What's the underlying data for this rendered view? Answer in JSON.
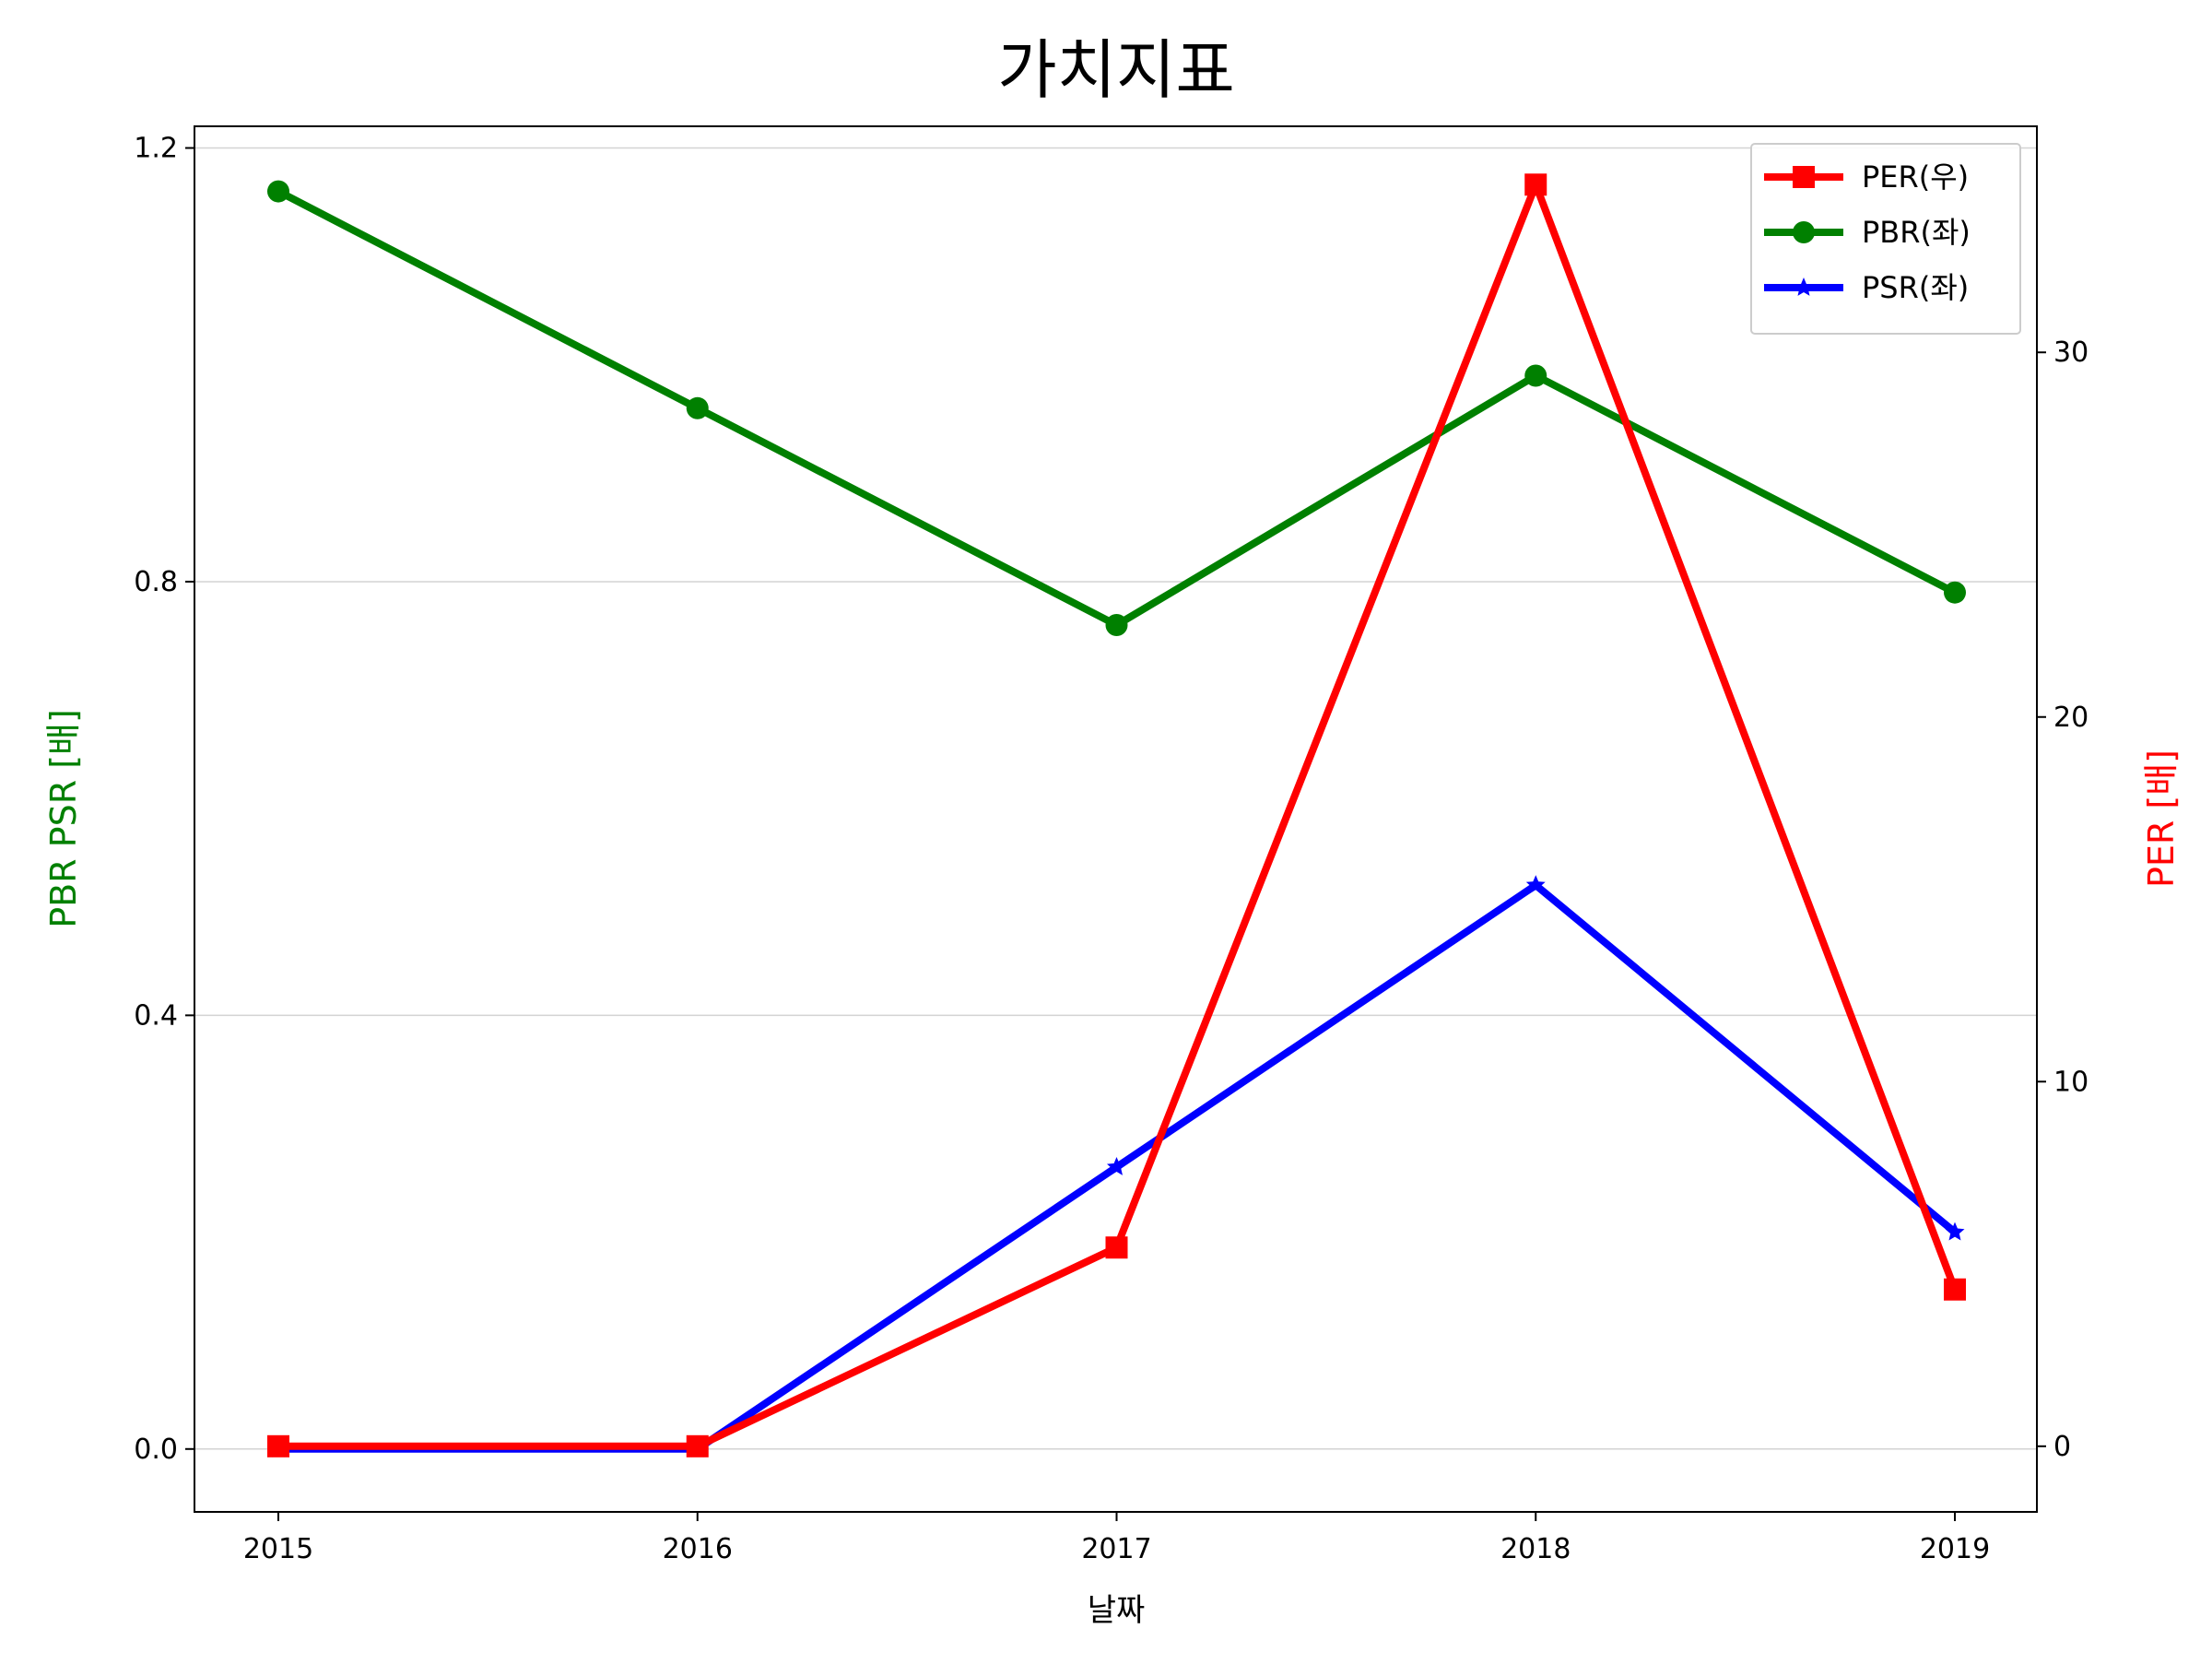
{
  "chart_data": {
    "type": "line",
    "title": "가치지표",
    "xlabel": "날짜",
    "ylabel_left": "PBR PSR [배]",
    "ylabel_right": "PER [배]",
    "x": [
      "2015",
      "2016",
      "2017",
      "2018",
      "2019"
    ],
    "left_axis": {
      "ylim": [
        -0.058,
        1.22
      ],
      "ticks": [
        "0.0",
        "0.4",
        "0.8",
        "1.2"
      ],
      "tick_values": [
        0.0,
        0.4,
        0.8,
        1.2
      ]
    },
    "right_axis": {
      "ylim": [
        -1.8,
        36.2
      ],
      "ticks": [
        "0",
        "10",
        "20",
        "30"
      ],
      "tick_values": [
        0,
        10,
        20,
        30
      ]
    },
    "grid": "horizontal",
    "legend_position": "top-right",
    "series": [
      {
        "name": "PER(우)",
        "axis": "right",
        "color": "#ff0000",
        "marker": "square",
        "values": [
          0.0,
          0.0,
          5.45,
          34.6,
          4.3
        ]
      },
      {
        "name": "PBR(좌)",
        "axis": "left",
        "color": "#008000",
        "marker": "circle",
        "values": [
          1.16,
          0.96,
          0.76,
          0.99,
          0.79
        ]
      },
      {
        "name": "PSR(좌)",
        "axis": "left",
        "color": "#0000ff",
        "marker": "star",
        "values": [
          0.0,
          0.0,
          0.26,
          0.52,
          0.2
        ]
      }
    ]
  }
}
